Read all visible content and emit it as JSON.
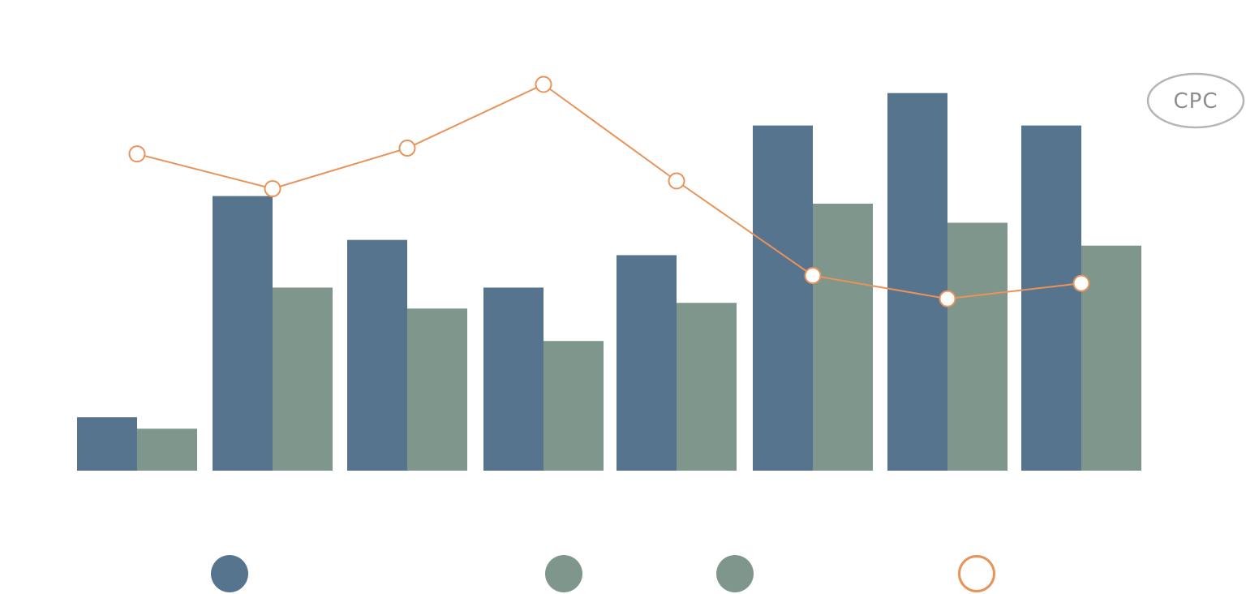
{
  "chart_data": {
    "type": "bar",
    "categories": [
      "",
      "",
      "",
      "",
      "",
      "",
      "",
      ""
    ],
    "ylim": [
      0,
      100
    ],
    "grid": false,
    "legend_position": "bottom",
    "series": [
      {
        "type": "bar",
        "color": "#57748f",
        "values": [
          14,
          72,
          60.5,
          48,
          56.5,
          90.5,
          99,
          90.5
        ]
      },
      {
        "type": "bar",
        "color": "#7f968c",
        "values": [
          11,
          48,
          42.5,
          34,
          44,
          70,
          65,
          59
        ]
      },
      {
        "type": "line",
        "color": "#e8935a",
        "axis": "right",
        "ylim": [
          0,
          100
        ],
        "values": [
          82,
          73,
          83.5,
          100,
          75,
          50.5,
          44.5,
          48.5
        ]
      }
    ],
    "annotation": {
      "label": "CPC",
      "color": "#8e8e8e"
    }
  }
}
